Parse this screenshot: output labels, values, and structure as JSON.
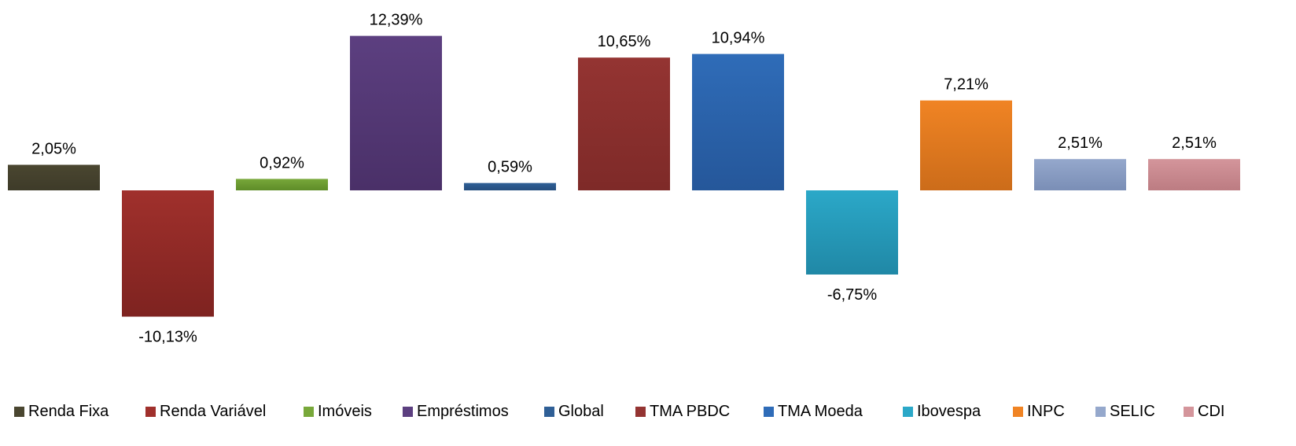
{
  "chart_data": {
    "type": "bar",
    "title": "",
    "xlabel": "",
    "ylabel": "",
    "ylim": [
      -12,
      13
    ],
    "grid": false,
    "legend_position": "bottom",
    "categories": [
      "Renda Fixa",
      "Renda Variável",
      "Imóveis",
      "Empréstimos",
      "Global",
      "TMA PBDC",
      "TMA Moeda",
      "Ibovespa",
      "INPC",
      "SELIC",
      "CDI"
    ],
    "values": [
      2.05,
      -10.13,
      0.92,
      12.39,
      0.59,
      10.65,
      10.94,
      -6.75,
      7.21,
      2.51,
      2.51
    ],
    "data_labels": [
      "2,05%",
      "-10,13%",
      "0,92%",
      "12,39%",
      "0,59%",
      "10,65%",
      "10,94%",
      "-6,75%",
      "7,21%",
      "2,51%",
      "2,51%"
    ],
    "colors": [
      "#4A4630",
      "#A0302C",
      "#78A83A",
      "#5C3F80",
      "#2F5F96",
      "#943432",
      "#2F6CB8",
      "#2BA8C8",
      "#F08424",
      "#95A8CC",
      "#D4959B"
    ],
    "colors_dark": [
      "#3E3B29",
      "#7E2320",
      "#5E8C28",
      "#4A3068",
      "#264E7E",
      "#7E2A28",
      "#25579A",
      "#2088A6",
      "#CC6C1A",
      "#7A8EB6",
      "#BC7C82"
    ]
  }
}
